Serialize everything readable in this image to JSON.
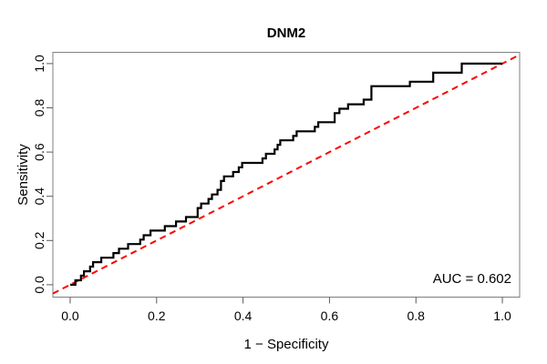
{
  "annotation": {
    "auc_label": "AUC = 0.602"
  },
  "chart_data": {
    "type": "line",
    "subtype": "roc-step-curve",
    "title": "DNM2",
    "xlabel": "1 − Specificity",
    "ylabel": "Sensitivity",
    "xlim": [
      -0.04,
      1.04
    ],
    "ylim": [
      -0.056,
      1.051
    ],
    "x_ticks": [
      0.0,
      0.2,
      0.4,
      0.6,
      0.8,
      1.0
    ],
    "y_ticks": [
      0.0,
      0.2,
      0.4,
      0.6,
      0.8,
      1.0
    ],
    "x_tick_labels": [
      "0.0",
      "0.2",
      "0.4",
      "0.6",
      "0.8",
      "1.0"
    ],
    "y_tick_labels": [
      "0.0",
      "0.2",
      "0.4",
      "0.6",
      "0.8",
      "1.0"
    ],
    "grid": false,
    "legend": "none",
    "auc": 0.602,
    "annotations": [
      {
        "text": "AUC = 0.602",
        "position": "bottom-right"
      }
    ],
    "series": [
      {
        "name": "ROC curve (DNM2)",
        "render": "step",
        "color": "#000000",
        "line_style": "solid",
        "points": [
          [
            0.0,
            0.0
          ],
          [
            0.012,
            0.0
          ],
          [
            0.012,
            0.02
          ],
          [
            0.025,
            0.02
          ],
          [
            0.025,
            0.041
          ],
          [
            0.032,
            0.041
          ],
          [
            0.032,
            0.061
          ],
          [
            0.046,
            0.061
          ],
          [
            0.046,
            0.082
          ],
          [
            0.053,
            0.082
          ],
          [
            0.053,
            0.102
          ],
          [
            0.072,
            0.102
          ],
          [
            0.072,
            0.122
          ],
          [
            0.1,
            0.122
          ],
          [
            0.1,
            0.143
          ],
          [
            0.113,
            0.143
          ],
          [
            0.113,
            0.163
          ],
          [
            0.134,
            0.163
          ],
          [
            0.134,
            0.184
          ],
          [
            0.162,
            0.184
          ],
          [
            0.162,
            0.204
          ],
          [
            0.17,
            0.204
          ],
          [
            0.17,
            0.224
          ],
          [
            0.186,
            0.224
          ],
          [
            0.186,
            0.245
          ],
          [
            0.219,
            0.245
          ],
          [
            0.219,
            0.265
          ],
          [
            0.245,
            0.265
          ],
          [
            0.245,
            0.286
          ],
          [
            0.268,
            0.286
          ],
          [
            0.268,
            0.306
          ],
          [
            0.295,
            0.306
          ],
          [
            0.295,
            0.347
          ],
          [
            0.303,
            0.347
          ],
          [
            0.303,
            0.367
          ],
          [
            0.32,
            0.367
          ],
          [
            0.32,
            0.388
          ],
          [
            0.328,
            0.388
          ],
          [
            0.328,
            0.408
          ],
          [
            0.341,
            0.408
          ],
          [
            0.341,
            0.429
          ],
          [
            0.349,
            0.429
          ],
          [
            0.349,
            0.469
          ],
          [
            0.356,
            0.469
          ],
          [
            0.356,
            0.49
          ],
          [
            0.377,
            0.49
          ],
          [
            0.377,
            0.51
          ],
          [
            0.39,
            0.51
          ],
          [
            0.39,
            0.531
          ],
          [
            0.398,
            0.531
          ],
          [
            0.398,
            0.551
          ],
          [
            0.445,
            0.551
          ],
          [
            0.445,
            0.571
          ],
          [
            0.453,
            0.571
          ],
          [
            0.453,
            0.592
          ],
          [
            0.473,
            0.592
          ],
          [
            0.473,
            0.612
          ],
          [
            0.48,
            0.612
          ],
          [
            0.48,
            0.633
          ],
          [
            0.486,
            0.633
          ],
          [
            0.486,
            0.653
          ],
          [
            0.516,
            0.653
          ],
          [
            0.516,
            0.673
          ],
          [
            0.524,
            0.673
          ],
          [
            0.524,
            0.694
          ],
          [
            0.566,
            0.694
          ],
          [
            0.566,
            0.714
          ],
          [
            0.574,
            0.714
          ],
          [
            0.574,
            0.735
          ],
          [
            0.612,
            0.735
          ],
          [
            0.612,
            0.776
          ],
          [
            0.623,
            0.776
          ],
          [
            0.623,
            0.796
          ],
          [
            0.643,
            0.796
          ],
          [
            0.643,
            0.816
          ],
          [
            0.679,
            0.816
          ],
          [
            0.679,
            0.837
          ],
          [
            0.697,
            0.837
          ],
          [
            0.697,
            0.898
          ],
          [
            0.786,
            0.898
          ],
          [
            0.786,
            0.918
          ],
          [
            0.84,
            0.918
          ],
          [
            0.84,
            0.959
          ],
          [
            0.906,
            0.959
          ],
          [
            0.906,
            1.0
          ],
          [
            1.0,
            1.0
          ]
        ]
      },
      {
        "name": "Chance reference line",
        "render": "line",
        "color": "#ff0000",
        "line_style": "dashed",
        "points": [
          [
            -0.04,
            -0.04
          ],
          [
            1.04,
            1.04
          ]
        ]
      }
    ]
  }
}
